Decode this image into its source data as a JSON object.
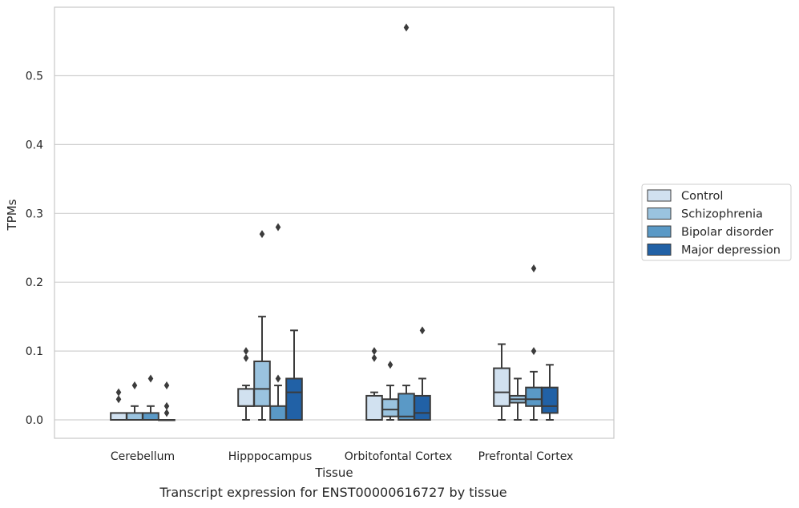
{
  "caption": "Transcript expression for ENST00000616727 by tissue",
  "chart_data": {
    "type": "box",
    "xlabel": "Tissue",
    "ylabel": "TPMs",
    "ylim": [
      -0.028,
      0.6
    ],
    "yticks": [
      0.0,
      0.1,
      0.2,
      0.3,
      0.4,
      0.5
    ],
    "ytick_labels": [
      "0.0",
      "0.1",
      "0.2",
      "0.3",
      "0.4",
      "0.5"
    ],
    "grid": "horizontal",
    "legend_position": "right",
    "categories": [
      "Cerebellum",
      "Hipppocampus",
      "Orbitofontal Cortex",
      "Prefrontal Cortex"
    ],
    "series": [
      {
        "name": "Control",
        "color": "#d1e1f0",
        "boxes": [
          {
            "low": 0.0,
            "q1": 0.0,
            "median": 0.0,
            "q3": 0.01,
            "high": 0.01,
            "outliers": [
              0.03,
              0.04
            ]
          },
          {
            "low": 0.0,
            "q1": 0.02,
            "median": 0.02,
            "q3": 0.045,
            "high": 0.05,
            "outliers": [
              0.09,
              0.1
            ]
          },
          {
            "low": 0.0,
            "q1": 0.0,
            "median": 0.0,
            "q3": 0.035,
            "high": 0.04,
            "outliers": [
              0.09,
              0.1
            ]
          },
          {
            "low": 0.0,
            "q1": 0.02,
            "median": 0.04,
            "q3": 0.075,
            "high": 0.11,
            "outliers": []
          }
        ]
      },
      {
        "name": "Schizophrenia",
        "color": "#9ac3df",
        "boxes": [
          {
            "low": 0.0,
            "q1": 0.0,
            "median": 0.0,
            "q3": 0.01,
            "high": 0.02,
            "outliers": [
              0.05
            ]
          },
          {
            "low": 0.0,
            "q1": 0.02,
            "median": 0.045,
            "q3": 0.085,
            "high": 0.15,
            "outliers": [
              0.27
            ]
          },
          {
            "low": 0.0,
            "q1": 0.005,
            "median": 0.015,
            "q3": 0.03,
            "high": 0.05,
            "outliers": [
              0.08
            ]
          },
          {
            "low": 0.0,
            "q1": 0.025,
            "median": 0.03,
            "q3": 0.035,
            "high": 0.06,
            "outliers": []
          }
        ]
      },
      {
        "name": "Bipolar disorder",
        "color": "#5a99c6",
        "boxes": [
          {
            "low": 0.0,
            "q1": 0.0,
            "median": 0.0,
            "q3": 0.01,
            "high": 0.02,
            "outliers": [
              0.06
            ]
          },
          {
            "low": 0.0,
            "q1": 0.0,
            "median": 0.0,
            "q3": 0.02,
            "high": 0.05,
            "outliers": [
              0.06,
              0.28
            ]
          },
          {
            "low": 0.0,
            "q1": 0.0,
            "median": 0.005,
            "q3": 0.038,
            "high": 0.05,
            "outliers": [
              0.57
            ]
          },
          {
            "low": 0.0,
            "q1": 0.02,
            "median": 0.03,
            "q3": 0.047,
            "high": 0.07,
            "outliers": [
              0.1,
              0.22
            ]
          }
        ]
      },
      {
        "name": "Major depression",
        "color": "#2161a6",
        "boxes": [
          {
            "low": 0.0,
            "q1": 0.0,
            "median": 0.0,
            "q3": 0.0,
            "high": 0.0,
            "outliers": [
              0.01,
              0.02,
              0.05
            ]
          },
          {
            "low": 0.0,
            "q1": 0.0,
            "median": 0.04,
            "q3": 0.06,
            "high": 0.13,
            "outliers": []
          },
          {
            "low": 0.0,
            "q1": 0.0,
            "median": 0.01,
            "q3": 0.035,
            "high": 0.06,
            "outliers": [
              0.13
            ]
          },
          {
            "low": 0.0,
            "q1": 0.01,
            "median": 0.02,
            "q3": 0.047,
            "high": 0.08,
            "outliers": []
          }
        ]
      }
    ],
    "styles": {
      "line_color": "#3b3b3b",
      "grid_color": "#d0d0d0",
      "frame_color": "#c8c8c8"
    }
  }
}
